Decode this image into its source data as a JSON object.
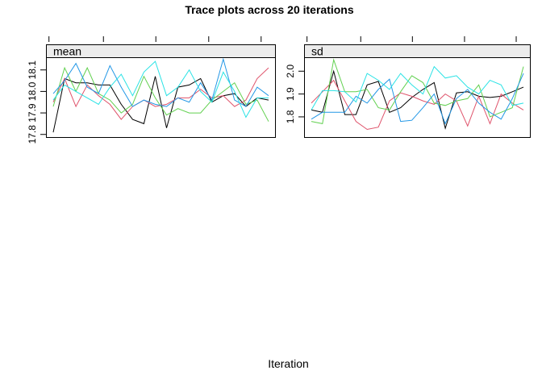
{
  "title": "Trace plots across 20 iterations",
  "xlabel": "Iteration",
  "colors": {
    "background": "#ffffff",
    "strip_fill": "#ECECEC",
    "border": "#000000",
    "text": "#000000"
  },
  "chart_data": [
    {
      "type": "line",
      "panel": "mean",
      "strip_label": "mean",
      "x": [
        1,
        2,
        3,
        4,
        5,
        6,
        7,
        8,
        9,
        10,
        11,
        12,
        13,
        14,
        15,
        16,
        17,
        18,
        19,
        20
      ],
      "xlim": [
        1,
        20
      ],
      "ylim": [
        17.784,
        18.159
      ],
      "yticks": [
        17.8,
        17.9,
        18.0,
        18.1
      ],
      "ytick_labels": [
        "17.8",
        "17.9",
        "18.0",
        "18.1"
      ],
      "grid": false,
      "legend": "none",
      "series": [
        {
          "name": "black",
          "color": "#000000",
          "values": [
            17.81,
            18.06,
            18.04,
            18.04,
            18.03,
            18.03,
            17.94,
            17.87,
            17.85,
            18.07,
            17.83,
            18.02,
            18.03,
            18.06,
            17.95,
            17.98,
            17.99,
            17.93,
            17.97,
            17.96
          ]
        },
        {
          "name": "red",
          "color": "#DF536B",
          "values": [
            17.95,
            18.06,
            17.93,
            18.03,
            17.98,
            17.94,
            17.87,
            17.93,
            17.96,
            17.93,
            17.94,
            17.97,
            17.97,
            18.01,
            17.97,
            17.98,
            17.93,
            17.96,
            18.06,
            18.11
          ]
        },
        {
          "name": "green",
          "color": "#61D04F",
          "values": [
            17.93,
            18.11,
            18.0,
            18.11,
            17.99,
            17.96,
            17.9,
            17.94,
            18.07,
            17.97,
            17.89,
            17.92,
            17.9,
            17.9,
            17.96,
            18.0,
            18.04,
            17.94,
            17.96,
            17.86
          ]
        },
        {
          "name": "blue",
          "color": "#2297E6",
          "values": [
            17.99,
            18.05,
            18.13,
            18.02,
            17.99,
            18.12,
            18.02,
            17.93,
            17.96,
            17.94,
            17.93,
            17.97,
            17.95,
            18.04,
            17.96,
            18.15,
            17.96,
            17.93,
            18.02,
            17.98
          ]
        },
        {
          "name": "cyan",
          "color": "#28E2E5",
          "values": [
            17.96,
            18.03,
            18.0,
            17.97,
            17.94,
            18.02,
            18.08,
            17.98,
            18.09,
            18.14,
            17.98,
            18.02,
            18.1,
            18.0,
            17.95,
            18.09,
            18.0,
            17.88,
            17.97,
            17.97
          ]
        }
      ]
    },
    {
      "type": "line",
      "panel": "sd",
      "strip_label": "sd",
      "x": [
        1,
        2,
        3,
        4,
        5,
        6,
        7,
        8,
        9,
        10,
        11,
        12,
        13,
        14,
        15,
        16,
        17,
        18,
        19,
        20
      ],
      "xlim": [
        1,
        20
      ],
      "ylim": [
        1.708,
        2.061
      ],
      "yticks": [
        1.8,
        1.9,
        2.0
      ],
      "ytick_labels": [
        "1.8",
        "1.9",
        "2.0"
      ],
      "grid": false,
      "legend": "none",
      "series": [
        {
          "name": "black",
          "color": "#000000",
          "values": [
            1.83,
            1.82,
            2.0,
            1.81,
            1.81,
            1.94,
            1.955,
            1.82,
            1.84,
            1.885,
            1.92,
            1.95,
            1.75,
            1.905,
            1.91,
            1.89,
            1.885,
            1.89,
            1.91,
            1.93
          ]
        },
        {
          "name": "red",
          "color": "#DF536B",
          "values": [
            1.86,
            1.91,
            1.96,
            1.87,
            1.78,
            1.745,
            1.755,
            1.87,
            1.905,
            1.89,
            1.87,
            1.855,
            1.9,
            1.87,
            1.76,
            1.89,
            1.77,
            1.9,
            1.86,
            1.83
          ]
        },
        {
          "name": "green",
          "color": "#61D04F",
          "values": [
            1.78,
            1.77,
            2.05,
            1.91,
            1.91,
            1.92,
            1.84,
            1.83,
            1.91,
            1.98,
            1.95,
            1.86,
            1.85,
            1.87,
            1.88,
            1.94,
            1.8,
            1.82,
            1.84,
            2.02
          ]
        },
        {
          "name": "blue",
          "color": "#2297E6",
          "values": [
            1.79,
            1.82,
            1.82,
            1.82,
            1.89,
            1.86,
            1.92,
            1.965,
            1.78,
            1.785,
            1.84,
            1.9,
            1.77,
            1.88,
            1.92,
            1.86,
            1.82,
            1.79,
            1.88,
            1.99
          ]
        },
        {
          "name": "cyan",
          "color": "#28E2E5",
          "values": [
            1.83,
            1.915,
            1.915,
            1.91,
            1.865,
            1.99,
            1.96,
            1.92,
            1.99,
            1.94,
            1.9,
            2.02,
            1.97,
            1.98,
            1.93,
            1.9,
            1.96,
            1.94,
            1.85,
            1.86
          ]
        }
      ]
    }
  ]
}
